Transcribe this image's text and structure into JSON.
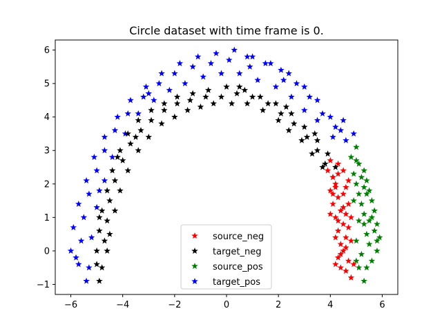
{
  "chart_data": {
    "type": "scatter",
    "title": "Circle dataset with time frame is 0.",
    "xlabel": "",
    "ylabel": "",
    "xlim": [
      -6.6,
      6.6
    ],
    "ylim": [
      -1.3,
      6.3
    ],
    "x_ticks": [
      -6,
      -4,
      -2,
      0,
      2,
      4,
      6
    ],
    "x_tick_labels": [
      "−6",
      "−4",
      "−2",
      "0",
      "2",
      "4",
      "6"
    ],
    "y_ticks": [
      -1,
      0,
      1,
      2,
      3,
      4,
      5,
      6
    ],
    "y_tick_labels": [
      "−1",
      "0",
      "1",
      "2",
      "3",
      "4",
      "5",
      "6"
    ],
    "grid": false,
    "legend_position": "lower center",
    "marker": "star",
    "series": [
      {
        "name": "source_neg",
        "color": "#ff0000",
        "description_region": "right arc, lower part (x≈4.0–4.9, y≈-0.8–2.8)",
        "points": [
          [
            4.0,
            2.7
          ],
          [
            3.9,
            2.4
          ],
          [
            4.1,
            2.2
          ],
          [
            4.3,
            2.6
          ],
          [
            4.2,
            2.0
          ],
          [
            4.0,
            1.8
          ],
          [
            4.5,
            2.4
          ],
          [
            4.3,
            1.6
          ],
          [
            4.1,
            1.4
          ],
          [
            4.6,
            1.9
          ],
          [
            4.4,
            1.2
          ],
          [
            4.2,
            1.0
          ],
          [
            4.7,
            1.4
          ],
          [
            4.5,
            0.8
          ],
          [
            4.3,
            0.6
          ],
          [
            4.8,
            1.0
          ],
          [
            4.6,
            0.4
          ],
          [
            4.4,
            0.2
          ],
          [
            4.8,
            0.3
          ],
          [
            4.5,
            0.0
          ],
          [
            4.3,
            -0.2
          ],
          [
            4.7,
            -0.3
          ],
          [
            4.6,
            -0.6
          ],
          [
            4.4,
            -0.5
          ],
          [
            4.8,
            -0.8
          ],
          [
            4.2,
            1.9
          ],
          [
            4.5,
            1.7
          ],
          [
            4.6,
            1.1
          ],
          [
            4.2,
            0.4
          ],
          [
            4.7,
            0.7
          ],
          [
            4.4,
            -0.1
          ],
          [
            4.9,
            -0.4
          ],
          [
            4.3,
            2.3
          ],
          [
            4.1,
            1.7
          ],
          [
            4.5,
            1.3
          ],
          [
            4.3,
            0.9
          ],
          [
            4.6,
            0.1
          ],
          [
            4.2,
            -0.4
          ],
          [
            4.7,
            2.1
          ],
          [
            4.0,
            1.1
          ]
        ]
      },
      {
        "name": "target_neg",
        "color": "#000000",
        "description_region": "inner left/top arc (x≈-5.0–4.2, y≈-0.9–4.9)",
        "points": [
          [
            -4.9,
            -0.9
          ],
          [
            -4.8,
            -0.5
          ],
          [
            -5.0,
            0.0
          ],
          [
            -4.7,
            0.3
          ],
          [
            -4.9,
            0.6
          ],
          [
            -4.6,
            0.9
          ],
          [
            -4.8,
            1.2
          ],
          [
            -4.5,
            1.5
          ],
          [
            -4.6,
            1.8
          ],
          [
            -4.3,
            2.1
          ],
          [
            -4.4,
            2.4
          ],
          [
            -4.0,
            2.7
          ],
          [
            -4.1,
            3.0
          ],
          [
            -3.7,
            3.2
          ],
          [
            -3.8,
            3.5
          ],
          [
            -3.3,
            3.6
          ],
          [
            -3.4,
            3.9
          ],
          [
            -2.9,
            3.9
          ],
          [
            -2.9,
            4.2
          ],
          [
            -2.4,
            4.2
          ],
          [
            -2.4,
            4.4
          ],
          [
            -1.9,
            4.4
          ],
          [
            -1.9,
            4.6
          ],
          [
            -1.4,
            4.5
          ],
          [
            -1.3,
            4.7
          ],
          [
            -0.8,
            4.6
          ],
          [
            -0.7,
            4.8
          ],
          [
            -0.2,
            4.6
          ],
          [
            0.0,
            4.9
          ],
          [
            0.4,
            4.7
          ],
          [
            0.7,
            4.8
          ],
          [
            1.0,
            4.6
          ],
          [
            1.3,
            4.6
          ],
          [
            1.6,
            4.4
          ],
          [
            1.9,
            4.4
          ],
          [
            2.1,
            4.1
          ],
          [
            2.5,
            4.1
          ],
          [
            2.6,
            3.8
          ],
          [
            3.0,
            3.7
          ],
          [
            3.1,
            3.4
          ],
          [
            3.5,
            3.3
          ],
          [
            3.5,
            3.0
          ],
          [
            3.9,
            2.9
          ],
          [
            3.8,
            2.6
          ],
          [
            4.2,
            2.5
          ],
          [
            4.1,
            2.2
          ],
          [
            -4.6,
            0.0
          ],
          [
            -4.5,
            0.5
          ],
          [
            -4.3,
            1.2
          ],
          [
            -4.1,
            1.8
          ],
          [
            -3.8,
            2.4
          ],
          [
            -3.4,
            3.0
          ],
          [
            -3.0,
            3.4
          ],
          [
            -2.5,
            3.8
          ],
          [
            -2.0,
            4.0
          ],
          [
            -1.5,
            4.2
          ],
          [
            -1.0,
            4.3
          ],
          [
            -0.5,
            4.4
          ],
          [
            0.2,
            4.4
          ],
          [
            0.8,
            4.4
          ],
          [
            1.4,
            4.2
          ],
          [
            2.0,
            3.9
          ],
          [
            2.4,
            3.6
          ],
          [
            2.9,
            3.3
          ],
          [
            3.3,
            2.9
          ],
          [
            3.7,
            2.5
          ],
          [
            -5.0,
            -0.4
          ],
          [
            -4.9,
            1.0
          ],
          [
            -4.2,
            2.8
          ],
          [
            -3.5,
            3.4
          ],
          [
            0.5,
            4.9
          ],
          [
            2.3,
            4.3
          ],
          [
            3.4,
            3.5
          ]
        ]
      },
      {
        "name": "source_pos",
        "color": "#008000",
        "description_region": "right arc outer lower part (x≈4.8–5.9, y≈-0.9–3.1)",
        "points": [
          [
            5.0,
            3.1
          ],
          [
            4.8,
            2.8
          ],
          [
            5.1,
            2.6
          ],
          [
            4.9,
            2.3
          ],
          [
            5.3,
            2.4
          ],
          [
            5.0,
            2.0
          ],
          [
            5.4,
            2.1
          ],
          [
            5.1,
            1.7
          ],
          [
            5.5,
            1.8
          ],
          [
            5.2,
            1.4
          ],
          [
            5.6,
            1.5
          ],
          [
            5.3,
            1.1
          ],
          [
            5.7,
            1.2
          ],
          [
            5.3,
            0.8
          ],
          [
            5.8,
            0.8
          ],
          [
            5.4,
            0.5
          ],
          [
            5.9,
            0.4
          ],
          [
            5.5,
            0.2
          ],
          [
            5.8,
            0.0
          ],
          [
            5.2,
            -0.1
          ],
          [
            5.6,
            -0.3
          ],
          [
            5.1,
            -0.5
          ],
          [
            5.3,
            -0.9
          ],
          [
            5.0,
            0.3
          ],
          [
            5.5,
            0.9
          ],
          [
            5.4,
            1.7
          ],
          [
            5.2,
            2.2
          ],
          [
            4.9,
            1.5
          ],
          [
            5.7,
            0.6
          ],
          [
            5.0,
            -0.3
          ],
          [
            5.4,
            -0.5
          ],
          [
            5.6,
            1.0
          ],
          [
            5.1,
            0.9
          ],
          [
            5.3,
            1.9
          ],
          [
            5.0,
            2.7
          ],
          [
            5.8,
            0.3
          ]
        ]
      },
      {
        "name": "target_pos",
        "color": "#0000ff",
        "description_region": "outer left/top arc (x≈-6.0–4.9, y≈-0.9–6.0)",
        "points": [
          [
            -5.7,
            -0.4
          ],
          [
            -5.4,
            -0.9
          ],
          [
            -6.0,
            0.0
          ],
          [
            -5.6,
            0.3
          ],
          [
            -5.9,
            0.7
          ],
          [
            -5.5,
            1.0
          ],
          [
            -5.7,
            1.4
          ],
          [
            -5.3,
            1.7
          ],
          [
            -5.4,
            2.1
          ],
          [
            -5.0,
            2.4
          ],
          [
            -5.1,
            2.8
          ],
          [
            -4.7,
            3.0
          ],
          [
            -4.7,
            3.4
          ],
          [
            -4.3,
            3.6
          ],
          [
            -4.2,
            4.0
          ],
          [
            -3.8,
            4.1
          ],
          [
            -3.7,
            4.5
          ],
          [
            -3.2,
            4.6
          ],
          [
            -3.1,
            4.9
          ],
          [
            -2.6,
            5.0
          ],
          [
            -2.5,
            5.3
          ],
          [
            -2.0,
            5.3
          ],
          [
            -1.8,
            5.6
          ],
          [
            -1.3,
            5.5
          ],
          [
            -1.1,
            5.8
          ],
          [
            -0.6,
            5.6
          ],
          [
            -0.4,
            5.9
          ],
          [
            0.1,
            5.7
          ],
          [
            0.3,
            6.0
          ],
          [
            0.8,
            5.8
          ],
          [
            1.0,
            5.8
          ],
          [
            1.5,
            5.6
          ],
          [
            1.7,
            5.6
          ],
          [
            2.1,
            5.4
          ],
          [
            2.4,
            5.3
          ],
          [
            2.7,
            5.0
          ],
          [
            3.0,
            4.9
          ],
          [
            3.2,
            4.6
          ],
          [
            3.5,
            4.5
          ],
          [
            3.7,
            4.1
          ],
          [
            4.0,
            4.0
          ],
          [
            4.2,
            3.7
          ],
          [
            4.4,
            3.6
          ],
          [
            4.6,
            3.3
          ],
          [
            4.9,
            3.5
          ],
          [
            4.5,
            3.9
          ],
          [
            -5.2,
            0.4
          ],
          [
            -5.0,
            1.3
          ],
          [
            -4.7,
            2.1
          ],
          [
            -4.4,
            2.8
          ],
          [
            -3.9,
            3.5
          ],
          [
            -3.4,
            4.1
          ],
          [
            -2.8,
            4.5
          ],
          [
            -2.2,
            4.8
          ],
          [
            -1.6,
            5.0
          ],
          [
            -0.9,
            5.2
          ],
          [
            -0.2,
            5.3
          ],
          [
            0.5,
            5.3
          ],
          [
            1.2,
            5.1
          ],
          [
            1.9,
            4.9
          ],
          [
            2.5,
            4.6
          ],
          [
            3.0,
            4.2
          ],
          [
            3.5,
            3.9
          ],
          [
            -5.8,
            -0.2
          ],
          [
            -5.3,
            -0.5
          ],
          [
            -4.9,
            1.8
          ],
          [
            -3.0,
            4.7
          ],
          [
            0.9,
            5.5
          ],
          [
            2.2,
            5.1
          ],
          [
            4.1,
            3.4
          ]
        ]
      }
    ]
  }
}
